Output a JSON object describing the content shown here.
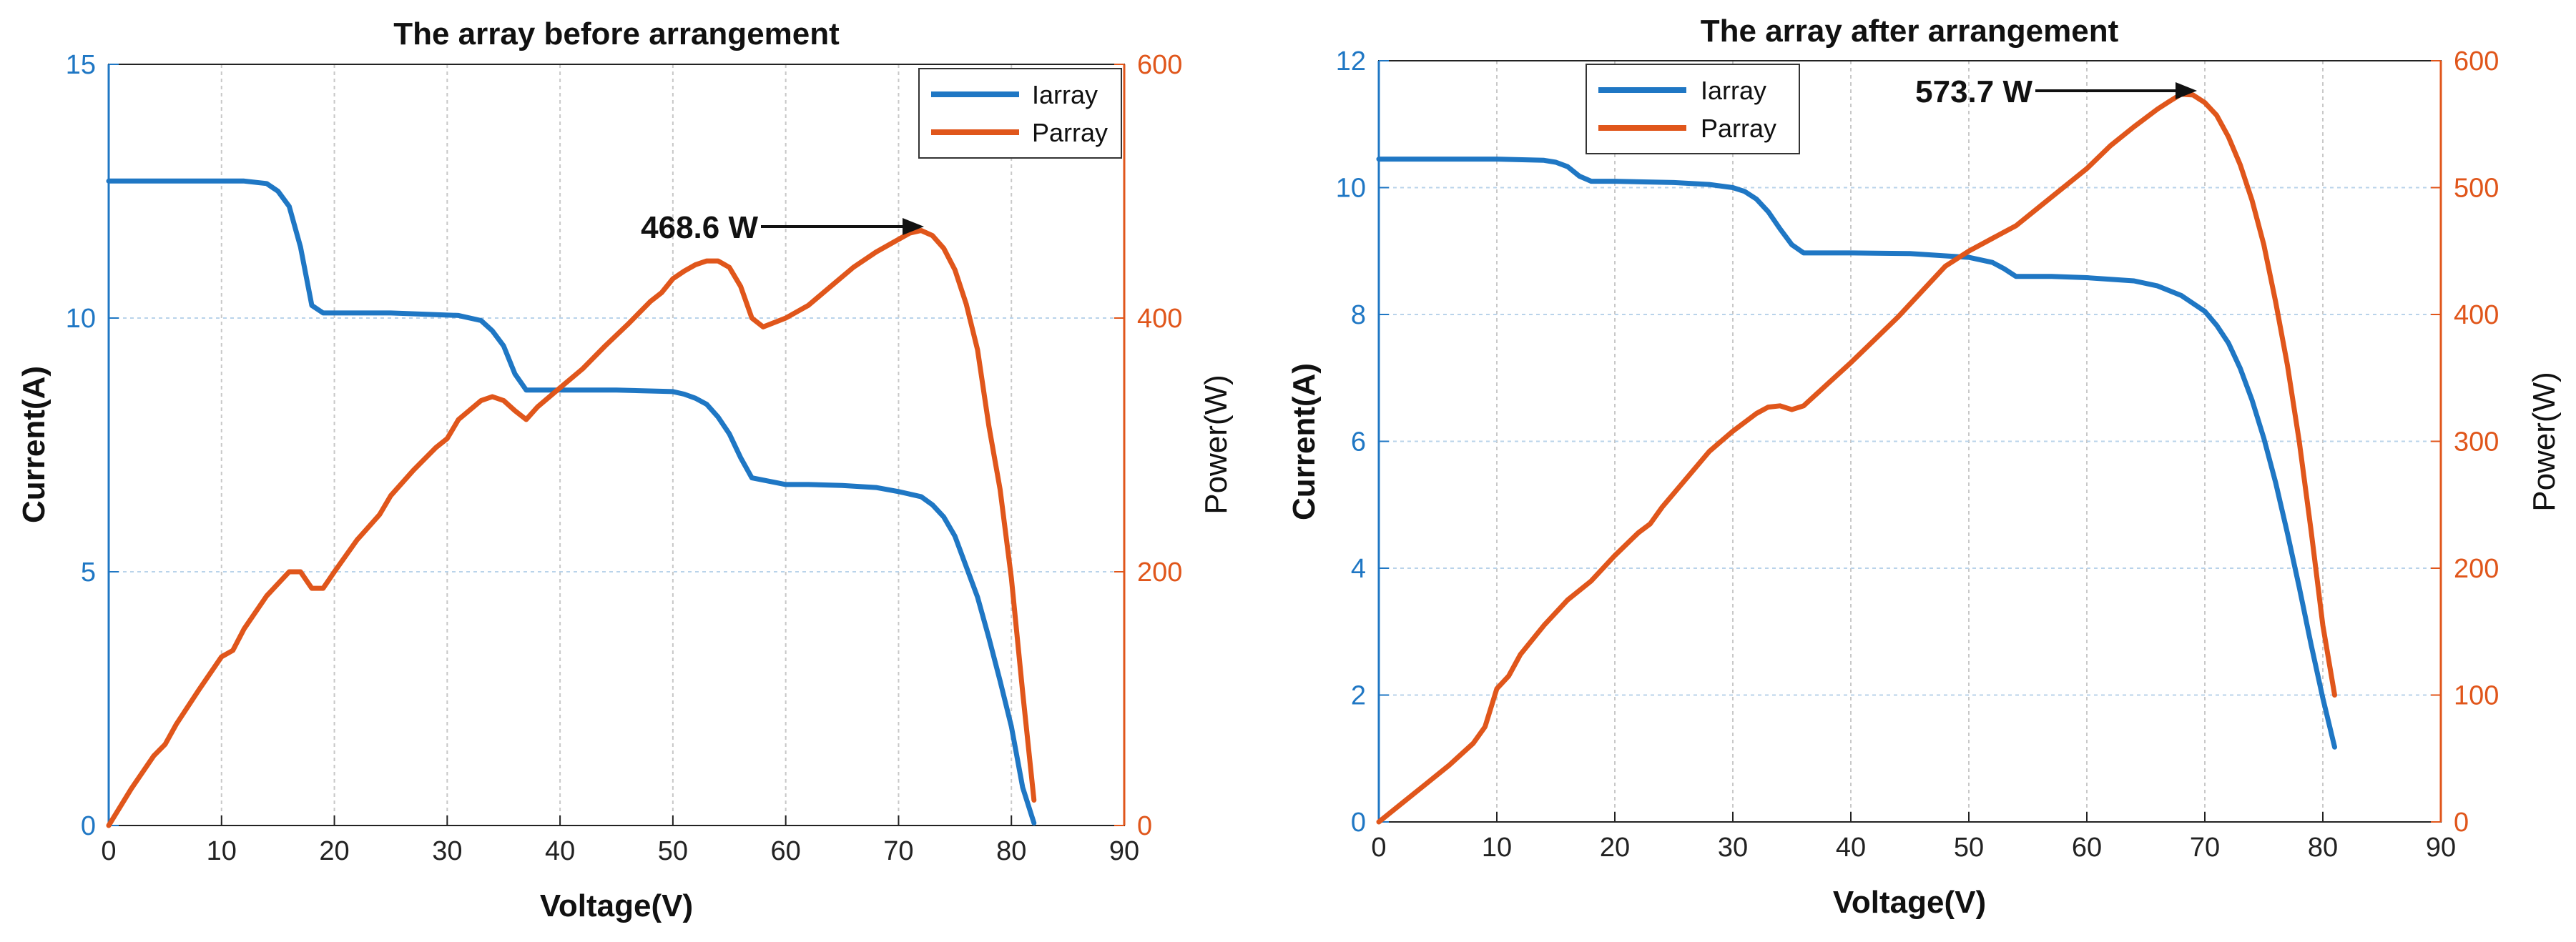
{
  "chart_data": [
    {
      "type": "line",
      "title": "The array before arrangement",
      "xlabel": "Voltage(V)",
      "ylabel_left": "Current(A)",
      "ylabel_right": "Power(W)",
      "xlim": [
        0,
        90
      ],
      "ylim_left": [
        0,
        15
      ],
      "ylim_right": [
        0,
        600
      ],
      "grid": true,
      "legend_position": "top-right",
      "x_ticks": [
        "0",
        "10",
        "20",
        "30",
        "40",
        "50",
        "60",
        "70",
        "80",
        "90"
      ],
      "y_left_ticks": [
        "0",
        "5",
        "10",
        "15"
      ],
      "y_right_ticks": [
        "0",
        "200",
        "400",
        "600"
      ],
      "colors": {
        "current": "#1f77c4",
        "power": "#e0561b",
        "axis_left": "#1f77c4",
        "axis_right": "#e0561b"
      },
      "series": [
        {
          "name": "Iarray",
          "axis": "left",
          "x": [
            0,
            5,
            10,
            12,
            14,
            15,
            16,
            17,
            18,
            19,
            25,
            31,
            33,
            34,
            35,
            36,
            37,
            40,
            45,
            50,
            51,
            52,
            53,
            54,
            55,
            56,
            57,
            60,
            62,
            65,
            68,
            70,
            72,
            73,
            74,
            75,
            76,
            77,
            78,
            79,
            80,
            81,
            82
          ],
          "y": [
            12.7,
            12.7,
            12.7,
            12.7,
            12.65,
            12.5,
            12.2,
            11.4,
            10.25,
            10.1,
            10.1,
            10.05,
            9.95,
            9.75,
            9.45,
            8.9,
            8.58,
            8.58,
            8.58,
            8.55,
            8.5,
            8.42,
            8.3,
            8.05,
            7.72,
            7.25,
            6.85,
            6.72,
            6.72,
            6.7,
            6.66,
            6.58,
            6.48,
            6.32,
            6.08,
            5.7,
            5.1,
            4.5,
            3.7,
            2.85,
            1.95,
            0.75,
            0.05
          ]
        },
        {
          "name": "Parray",
          "axis": "right",
          "x": [
            0,
            2,
            4,
            5,
            6,
            8,
            10,
            11,
            12,
            14,
            16,
            17,
            18,
            19,
            20,
            22,
            24,
            25,
            27,
            29,
            30,
            31,
            33,
            34,
            35,
            36,
            37,
            38,
            40,
            42,
            44,
            46,
            48,
            49,
            50,
            51,
            52,
            53,
            54,
            55,
            56,
            57,
            58,
            60,
            62,
            64,
            66,
            68,
            70,
            71,
            72,
            73,
            74,
            75,
            76,
            77,
            78,
            79,
            80,
            81,
            82
          ],
          "y": [
            0,
            29,
            55,
            64,
            80,
            107,
            133,
            138,
            155,
            181,
            200,
            200,
            187,
            187,
            200,
            225,
            245,
            260,
            280,
            298,
            305,
            320,
            335,
            338,
            335,
            327,
            320,
            330,
            345,
            360,
            378,
            395,
            413,
            420,
            431,
            437,
            442,
            445,
            445,
            440,
            425,
            400,
            393,
            400,
            410,
            425,
            440,
            452,
            462,
            467,
            469,
            465,
            455,
            438,
            411,
            375,
            315,
            265,
            195,
            105,
            20
          ]
        }
      ],
      "annotation": {
        "text": "468.6 W",
        "x": 72,
        "y": 468.6,
        "axis": "right"
      }
    },
    {
      "type": "line",
      "title": "The array after arrangement",
      "xlabel": "Voltage(V)",
      "ylabel_left": "Current(A)",
      "ylabel_right": "Power(W)",
      "xlim": [
        0,
        90
      ],
      "ylim_left": [
        0,
        12
      ],
      "ylim_right": [
        0,
        600
      ],
      "grid": true,
      "legend_position": "top-left",
      "x_ticks": [
        "0",
        "10",
        "20",
        "30",
        "40",
        "50",
        "60",
        "70",
        "80",
        "90"
      ],
      "y_left_ticks": [
        "0",
        "2",
        "4",
        "6",
        "8",
        "10",
        "12"
      ],
      "y_right_ticks": [
        "0",
        "100",
        "200",
        "300",
        "400",
        "500",
        "600"
      ],
      "colors": {
        "current": "#1f77c4",
        "power": "#e0561b",
        "axis_left": "#1f77c4",
        "axis_right": "#e0561b"
      },
      "series": [
        {
          "name": "Iarray",
          "axis": "left",
          "x": [
            0,
            5,
            10,
            14,
            15,
            16,
            17,
            18,
            20,
            25,
            28,
            30,
            31,
            32,
            33,
            34,
            35,
            36,
            40,
            45,
            50,
            52,
            53,
            54,
            57,
            60,
            64,
            66,
            68,
            70,
            71,
            72,
            73,
            74,
            75,
            76,
            77,
            78,
            79,
            80,
            81
          ],
          "y": [
            10.45,
            10.45,
            10.45,
            10.43,
            10.4,
            10.33,
            10.18,
            10.1,
            10.1,
            10.08,
            10.05,
            10.0,
            9.94,
            9.82,
            9.62,
            9.35,
            9.1,
            8.97,
            8.97,
            8.96,
            8.9,
            8.82,
            8.72,
            8.6,
            8.6,
            8.58,
            8.53,
            8.45,
            8.3,
            8.05,
            7.83,
            7.55,
            7.15,
            6.65,
            6.05,
            5.35,
            4.55,
            3.7,
            2.8,
            1.95,
            1.18
          ]
        },
        {
          "name": "Parray",
          "axis": "right",
          "x": [
            0,
            2,
            4,
            6,
            8,
            9,
            10,
            11,
            12,
            14,
            16,
            18,
            20,
            22,
            23,
            24,
            26,
            28,
            30,
            32,
            33,
            34,
            35,
            36,
            38,
            40,
            42,
            44,
            46,
            48,
            50,
            52,
            54,
            56,
            58,
            60,
            62,
            64,
            66,
            67,
            68,
            69,
            70,
            71,
            72,
            73,
            74,
            75,
            76,
            77,
            78,
            79,
            80,
            81
          ],
          "y": [
            0,
            15,
            30,
            45,
            62,
            75,
            105,
            115,
            132,
            155,
            175,
            190,
            210,
            228,
            235,
            248,
            270,
            292,
            308,
            322,
            327,
            328,
            325,
            328,
            345,
            362,
            380,
            398,
            418,
            438,
            450,
            460,
            470,
            485,
            500,
            515,
            533,
            548,
            562,
            568,
            573.7,
            573,
            567,
            557,
            540,
            518,
            490,
            455,
            410,
            360,
            300,
            230,
            155,
            100
          ]
        }
      ],
      "annotation": {
        "text": "573.7 W",
        "x": 68,
        "y": 573.7,
        "axis": "right"
      }
    }
  ]
}
